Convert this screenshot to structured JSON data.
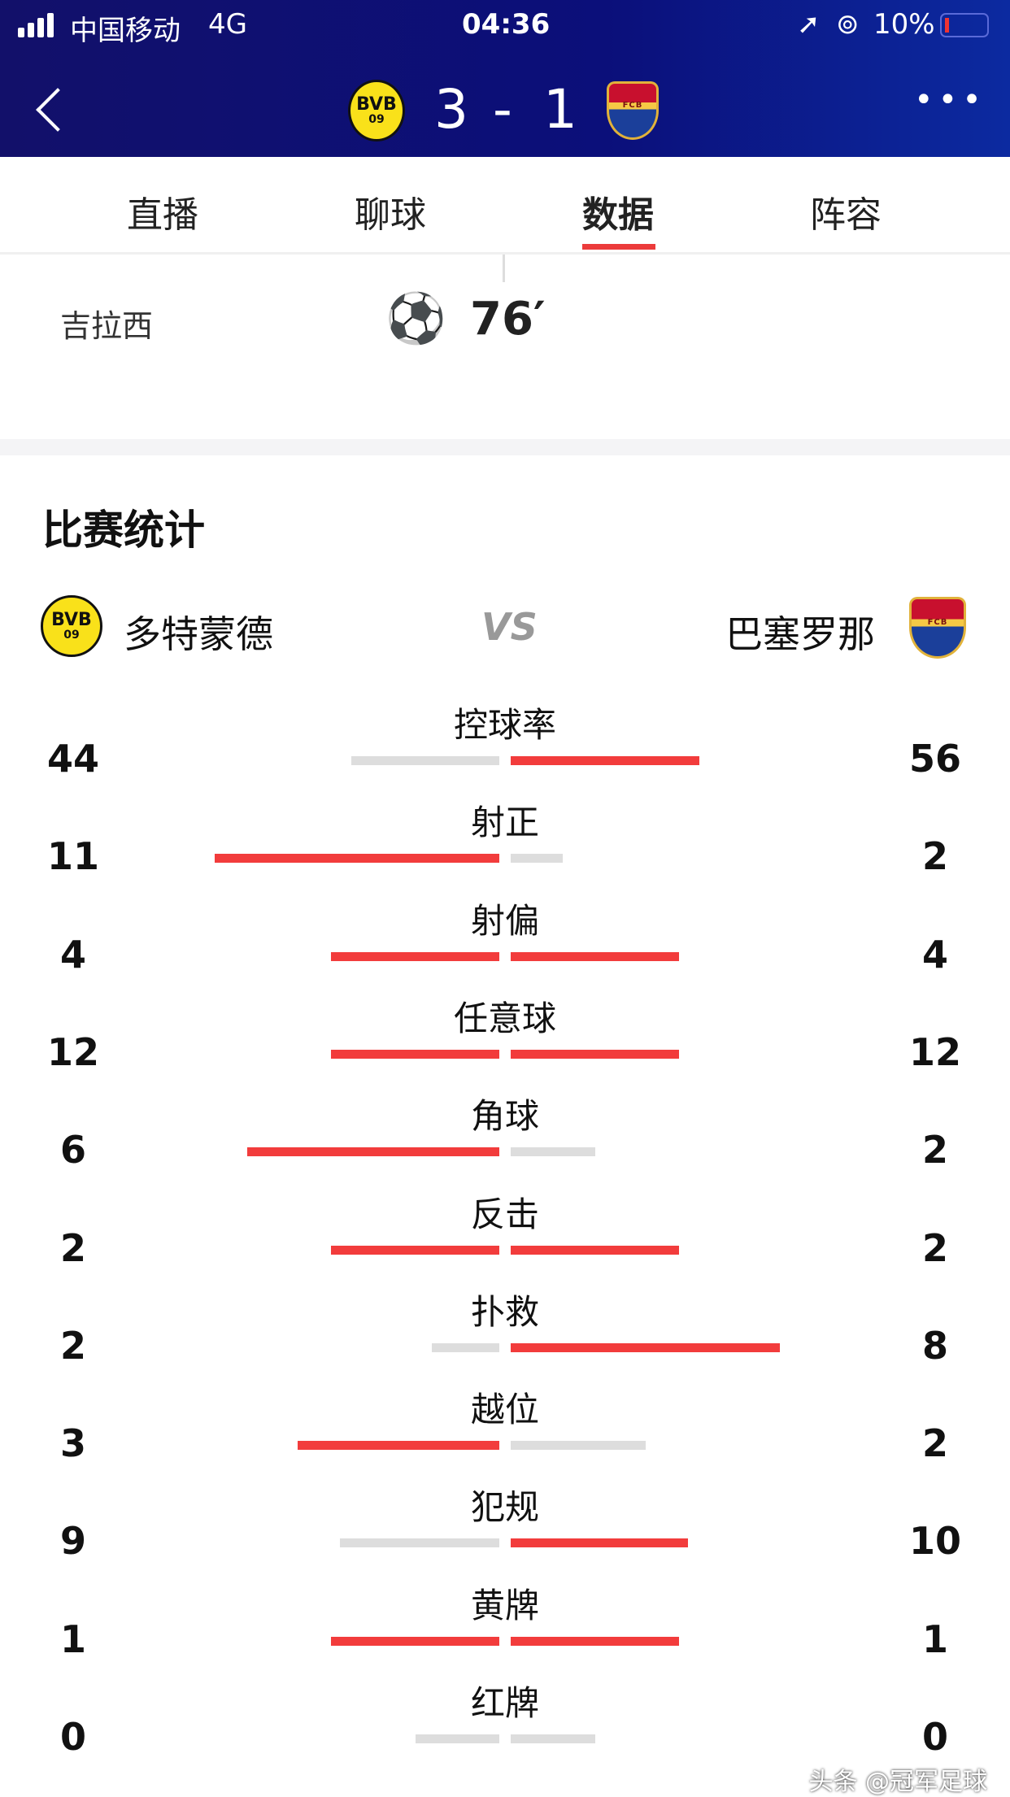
{
  "status_bar": {
    "carrier": "中国移动",
    "network": "4G",
    "time": "04:36",
    "battery": "10%"
  },
  "match": {
    "home_score": "3",
    "separator": "-",
    "away_score": "1",
    "home_badge": "BVB",
    "home_badge_year": "09",
    "away_badge": "FCB"
  },
  "tabs": [
    {
      "label": "直播"
    },
    {
      "label": "聊球"
    },
    {
      "label": "数据",
      "active": true
    },
    {
      "label": "阵容"
    }
  ],
  "goal_event": {
    "player": "吉拉西",
    "minute": "76′",
    "icon": "soccer-ball-icon"
  },
  "stats": {
    "title": "比赛统计",
    "home_team": "多特蒙德",
    "vs": "VS",
    "away_team": "巴塞罗那",
    "rows": [
      {
        "label": "控球率",
        "home": "44",
        "away": "56"
      },
      {
        "label": "射正",
        "home": "11",
        "away": "2"
      },
      {
        "label": "射偏",
        "home": "4",
        "away": "4"
      },
      {
        "label": "任意球",
        "home": "12",
        "away": "12"
      },
      {
        "label": "角球",
        "home": "6",
        "away": "2"
      },
      {
        "label": "反击",
        "home": "2",
        "away": "2"
      },
      {
        "label": "扑救",
        "home": "2",
        "away": "8"
      },
      {
        "label": "越位",
        "home": "3",
        "away": "2"
      },
      {
        "label": "犯规",
        "home": "9",
        "away": "10"
      },
      {
        "label": "黄牌",
        "home": "1",
        "away": "1"
      },
      {
        "label": "红牌",
        "home": "0",
        "away": "0"
      }
    ]
  },
  "colors": {
    "header": "#0b0f7a",
    "accent": "#ec3b3b",
    "bar_lead": "#f23c3c",
    "bar_trail": "#dddddd"
  },
  "watermark": "头条 @冠军足球"
}
